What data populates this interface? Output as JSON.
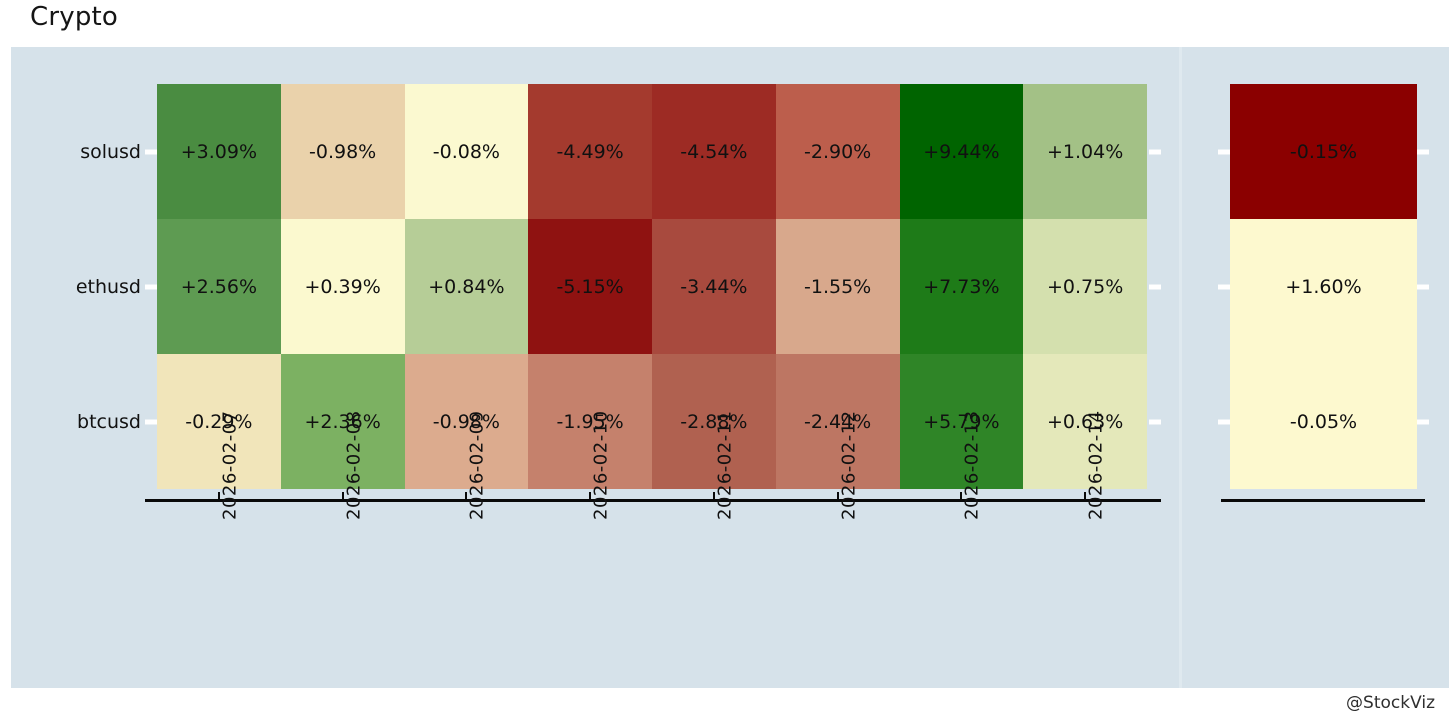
{
  "watermark": "@StockViz",
  "chart_data": {
    "type": "heatmap",
    "title": "Crypto",
    "columns": [
      "2026-02-07",
      "2026-02-08",
      "2026-02-09",
      "2026-02-10",
      "2026-02-11",
      "2026-02-12",
      "2026-02-13",
      "2026-02-14"
    ],
    "rows": [
      "solusd",
      "ethusd",
      "btcusd"
    ],
    "series": [
      {
        "name": "solusd",
        "values": [
          3.09,
          -0.98,
          -0.08,
          -4.49,
          -4.54,
          -2.9,
          9.44,
          1.04
        ],
        "labels": [
          "+3.09%",
          "-0.98%",
          "-0.08%",
          "-4.49%",
          "-4.54%",
          "-2.90%",
          "+9.44%",
          "+1.04%"
        ],
        "colors": [
          "#4a8c41",
          "#ead2ab",
          "#fbf9d0",
          "#a43a2e",
          "#9d2b24",
          "#bc5e4c",
          "#006400",
          "#a3c186"
        ],
        "summary_value": -0.15,
        "summary_label": "-0.15%",
        "summary_color": "#8b0000"
      },
      {
        "name": "ethusd",
        "values": [
          2.56,
          0.39,
          0.84,
          -5.15,
          -3.44,
          -1.55,
          7.73,
          0.75
        ],
        "labels": [
          "+2.56%",
          "+0.39%",
          "+0.84%",
          "-5.15%",
          "-3.44%",
          "-1.55%",
          "+7.73%",
          "+0.75%"
        ],
        "colors": [
          "#5e9b52",
          "#fbf9cf",
          "#b6cd97",
          "#8f1211",
          "#a84a3e",
          "#d8a88c",
          "#1e7b18",
          "#d4e0ae"
        ],
        "summary_value": 1.6,
        "summary_label": "+1.60%",
        "summary_color": "#fdf9cf"
      },
      {
        "name": "btcusd",
        "values": [
          -0.29,
          2.36,
          -0.98,
          -1.95,
          -2.88,
          -2.44,
          5.79,
          0.63
        ],
        "labels": [
          "-0.29%",
          "+2.36%",
          "-0.98%",
          "-1.95%",
          "-2.88%",
          "-2.44%",
          "+5.79%",
          "+0.63%"
        ],
        "colors": [
          "#f1e5ba",
          "#7cb162",
          "#dcab8e",
          "#c5816c",
          "#b06150",
          "#bd7663",
          "#2f8527",
          "#e4e8ba"
        ],
        "summary_value": -0.05,
        "summary_label": "-0.05%",
        "summary_color": "#fdf9cf"
      }
    ],
    "colorscale": {
      "negative": "#8b0000",
      "neutral": "#fdf9cf",
      "positive": "#006400"
    },
    "layout": {
      "background": "#d6e2ea",
      "grid": false,
      "x_tick_rotation": 90,
      "legend": "none"
    }
  }
}
